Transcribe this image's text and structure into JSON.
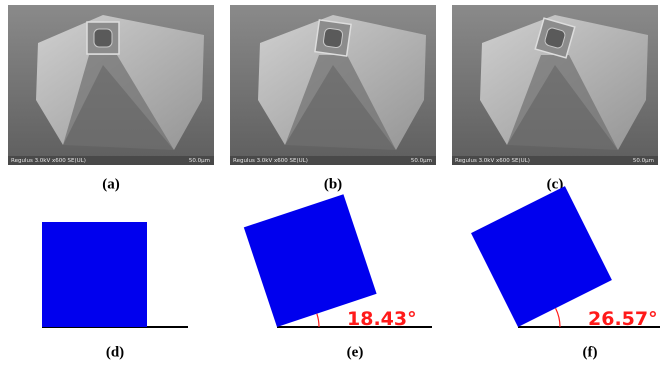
{
  "panels": [
    {
      "label": "(a)",
      "info": "Regulus 3.0kV x600 SE(UL)",
      "scale": "50.0µm"
    },
    {
      "label": "(b)",
      "info": "Regulus 3.0kV x600 SE(UL)",
      "scale": "50.0µm"
    },
    {
      "label": "(c)",
      "info": "Regulus 3.0kV x600 SE(UL)",
      "scale": "50.0µm"
    }
  ],
  "diagrams": [
    {
      "label": "(d)"
    },
    {
      "label": "(e)",
      "angle": 18.43,
      "angle_label": "18.43°"
    },
    {
      "label": "(f)",
      "angle": 26.57,
      "angle_label": "26.57°"
    }
  ]
}
